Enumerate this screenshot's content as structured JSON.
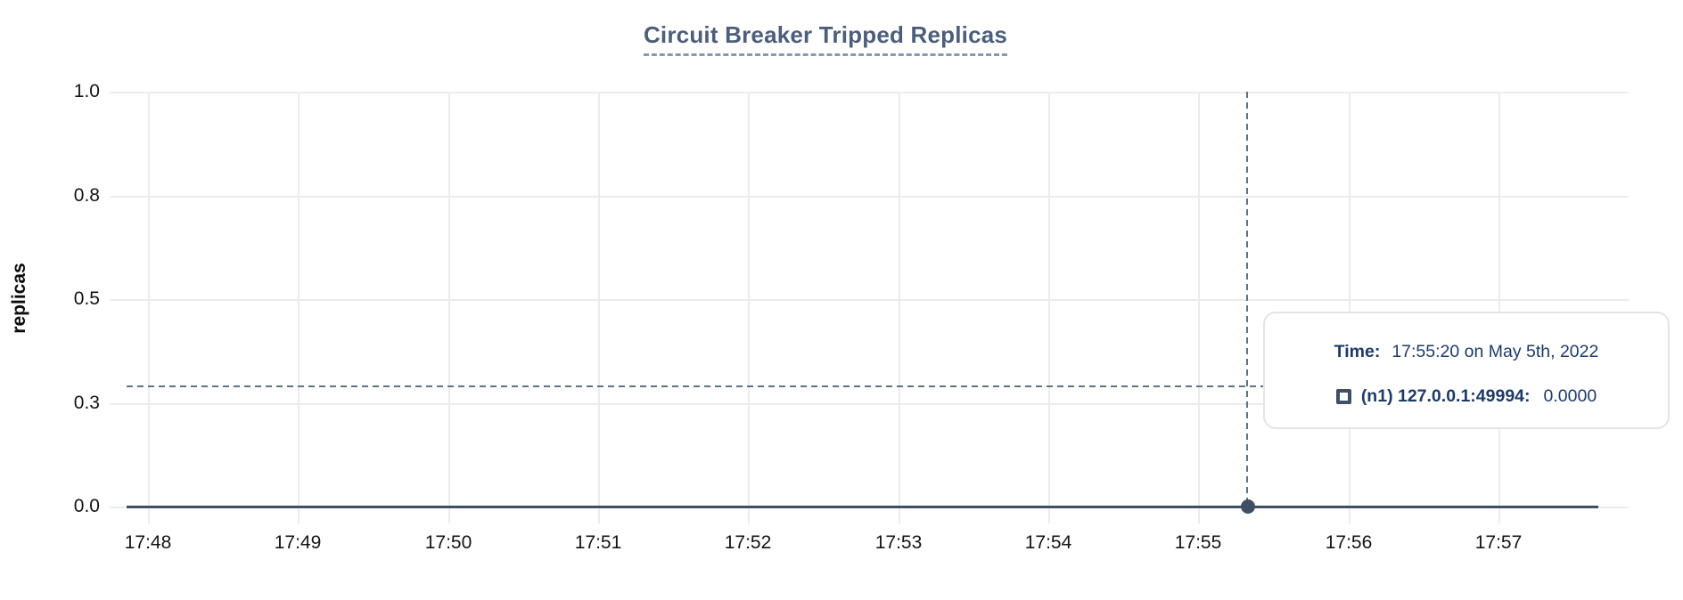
{
  "title": "Circuit Breaker Tripped Replicas",
  "y_axis": {
    "label": "replicas",
    "tick_labels": [
      "1.0",
      "0.8",
      "0.5",
      "0.3",
      "0.0"
    ]
  },
  "x_axis": {
    "tick_labels": [
      "17:48",
      "17:49",
      "17:50",
      "17:51",
      "17:52",
      "17:53",
      "17:54",
      "17:55",
      "17:56",
      "17:57"
    ]
  },
  "tooltip": {
    "time_label": "Time:",
    "time_value": "17:55:20 on May 5th, 2022",
    "series_label": "(n1) 127.0.0.1:49994:",
    "series_value": "0.0000"
  },
  "colors": {
    "background": "#ffffff",
    "grid": "#ececec",
    "axis_text": "#141414",
    "title_text": "#4d5e7b",
    "title_underline": "#8897b3",
    "series_line": "#3e4f66",
    "crosshair": "#5d7486",
    "tooltip_border": "#e3e4ea",
    "tooltip_text": "#1d3b66"
  },
  "chart_data": {
    "type": "line",
    "title": "Circuit Breaker Tripped Replicas",
    "xlabel": "",
    "ylabel": "replicas",
    "x": [
      "17:48",
      "17:49",
      "17:50",
      "17:51",
      "17:52",
      "17:53",
      "17:54",
      "17:55",
      "17:56",
      "17:57"
    ],
    "series": [
      {
        "name": "(n1) 127.0.0.1:49994",
        "values": [
          0,
          0,
          0,
          0,
          0,
          0,
          0,
          0,
          0,
          0
        ]
      }
    ],
    "ylim": [
      0.0,
      1.0
    ],
    "y_tick_values": [
      1.0,
      0.8,
      0.5,
      0.3,
      0.0
    ],
    "grid": true,
    "legend_position": "floating-tooltip",
    "cursor": {
      "time": "17:55:20 on May 5th, 2022",
      "series": "(n1) 127.0.0.1:49994",
      "value": "0.0000"
    }
  }
}
